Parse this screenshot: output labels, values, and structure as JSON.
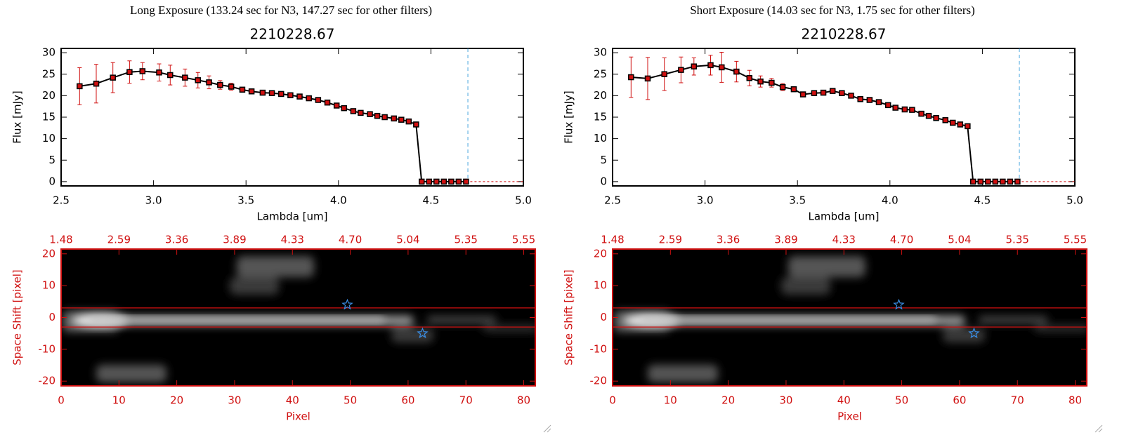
{
  "chart_data": [
    {
      "type": "line",
      "title": "Long Exposure (133.24 sec for N3, 147.27 sec for other filters)",
      "subtitle": "2210228.67",
      "x_label": "Lambda [um]",
      "y_label": "Flux [mJy]",
      "xlim": [
        2.5,
        5.0
      ],
      "ylim": [
        -1,
        31
      ],
      "xticks": [
        2.5,
        {
          "value": 3.0,
          "label": "3.0"
        },
        3.5,
        {
          "value": 4.0,
          "label": "4.0"
        },
        4.5,
        {
          "value": 5.0,
          "label": "5.0"
        }
      ],
      "yticks": [
        0,
        5,
        10,
        15,
        20,
        25,
        30
      ],
      "vline": 4.7,
      "color": "#d01010",
      "x": [
        2.6,
        2.69,
        2.78,
        2.87,
        2.94,
        3.03,
        3.09,
        3.17,
        3.24,
        3.3,
        3.36,
        3.42,
        3.48,
        3.53,
        3.59,
        3.64,
        3.69,
        3.74,
        3.79,
        3.84,
        3.89,
        3.94,
        3.99,
        4.03,
        4.08,
        4.12,
        4.17,
        4.21,
        4.25,
        4.3,
        4.34,
        4.38,
        4.42,
        4.45,
        4.49,
        4.53,
        4.57,
        4.61,
        4.65,
        4.69
      ],
      "series": [
        {
          "values": [
            22.2,
            22.8,
            24.2,
            25.5,
            25.7,
            25.4,
            24.8,
            24.2,
            23.6,
            23.1,
            22.5,
            22.1,
            21.4,
            21.0,
            20.7,
            20.6,
            20.4,
            20.1,
            19.8,
            19.4,
            19.0,
            18.4,
            17.7,
            17.1,
            16.4,
            16.0,
            15.7,
            15.3,
            15.0,
            14.7,
            14.4,
            14.0,
            13.3,
            0,
            0,
            0,
            0,
            0,
            0,
            0
          ],
          "errors": [
            4.3,
            4.5,
            3.5,
            2.6,
            2.0,
            2.0,
            2.3,
            2.0,
            1.8,
            1.5,
            1.0,
            0.8,
            0.4,
            0.4,
            0.4,
            0.4,
            0.4,
            0.4,
            0.4,
            0.4,
            0.4,
            0.4,
            0.4,
            0.4,
            0.4,
            0.4,
            0.4,
            0.4,
            0.4,
            0.4,
            0.4,
            0.4,
            0.4,
            0,
            0,
            0,
            0,
            0,
            0,
            0
          ]
        }
      ]
    },
    {
      "type": "line",
      "title": "Short Exposure (14.03 sec for N3, 1.75 sec for other filters)",
      "subtitle": "2210228.67",
      "x_label": "Lambda [um]",
      "y_label": "Flux [mJy]",
      "xlim": [
        2.5,
        5.0
      ],
      "ylim": [
        -1,
        31
      ],
      "xticks": [
        2.5,
        {
          "value": 3.0,
          "label": "3.0"
        },
        3.5,
        {
          "value": 4.0,
          "label": "4.0"
        },
        4.5,
        {
          "value": 5.0,
          "label": "5.0"
        }
      ],
      "yticks": [
        0,
        5,
        10,
        15,
        20,
        25,
        30
      ],
      "vline": 4.7,
      "color": "#d01010",
      "x": [
        2.6,
        2.69,
        2.78,
        2.87,
        2.94,
        3.03,
        3.09,
        3.17,
        3.24,
        3.3,
        3.36,
        3.42,
        3.48,
        3.53,
        3.59,
        3.64,
        3.69,
        3.74,
        3.79,
        3.84,
        3.89,
        3.94,
        3.99,
        4.03,
        4.08,
        4.12,
        4.17,
        4.21,
        4.25,
        4.3,
        4.34,
        4.38,
        4.42,
        4.45,
        4.49,
        4.53,
        4.57,
        4.61,
        4.65,
        4.69
      ],
      "series": [
        {
          "values": [
            24.3,
            24.0,
            25.0,
            26.0,
            26.8,
            27.1,
            26.6,
            25.6,
            24.1,
            23.3,
            23.0,
            22.0,
            21.5,
            20.3,
            20.6,
            20.7,
            21.1,
            20.6,
            20.0,
            19.2,
            19.0,
            18.5,
            17.8,
            17.2,
            16.8,
            16.7,
            15.8,
            15.3,
            14.8,
            14.3,
            13.7,
            13.3,
            12.9,
            0,
            0,
            0,
            0,
            0,
            0,
            0
          ],
          "errors": [
            4.7,
            4.9,
            3.8,
            3.0,
            2.0,
            2.3,
            3.5,
            2.4,
            1.8,
            1.3,
            1.0,
            0.8,
            0.4,
            0.4,
            0.4,
            0.4,
            0.4,
            0.4,
            0.4,
            0.4,
            0.4,
            0.4,
            0.4,
            0.4,
            0.4,
            0.4,
            0.4,
            0.4,
            0.4,
            0.4,
            0.4,
            0.4,
            0.4,
            0,
            0,
            0,
            0,
            0,
            0,
            0
          ]
        }
      ]
    },
    {
      "type": "image",
      "x_label": "Pixel",
      "y_label": "Space Shift [pixel]",
      "xlim": [
        0,
        82
      ],
      "ylim": [
        -21.5,
        21.5
      ],
      "xticks": [
        0,
        10,
        20,
        30,
        40,
        50,
        60,
        70,
        80
      ],
      "yticks": [
        -20,
        -10,
        0,
        10,
        20
      ],
      "x2ticks": [
        {
          "value": 0,
          "label": "1.48"
        },
        {
          "value": 10,
          "label": "2.59"
        },
        {
          "value": 20,
          "label": "3.36"
        },
        {
          "value": 30,
          "label": "3.89"
        },
        {
          "value": 40,
          "label": "4.33"
        },
        {
          "value": 50,
          "label": "4.70"
        },
        {
          "value": 60,
          "label": "5.04"
        },
        {
          "value": 70,
          "label": "5.35"
        },
        {
          "value": 80,
          "label": "5.55"
        }
      ],
      "hlines": [
        3,
        -3
      ],
      "stars": {
        "x": [
          49.5,
          62.5
        ],
        "y": [
          4,
          -5
        ]
      },
      "color": "#d01010"
    },
    {
      "type": "image",
      "x_label": "Pixel",
      "y_label": "Space Shift [pixel]",
      "xlim": [
        0,
        82
      ],
      "ylim": [
        -21.5,
        21.5
      ],
      "xticks": [
        0,
        10,
        20,
        30,
        40,
        50,
        60,
        70,
        80
      ],
      "yticks": [
        -20,
        -10,
        0,
        10,
        20
      ],
      "x2ticks": [
        {
          "value": 0,
          "label": "1.48"
        },
        {
          "value": 10,
          "label": "2.59"
        },
        {
          "value": 20,
          "label": "3.36"
        },
        {
          "value": 30,
          "label": "3.89"
        },
        {
          "value": 40,
          "label": "4.33"
        },
        {
          "value": 50,
          "label": "4.70"
        },
        {
          "value": 60,
          "label": "5.04"
        },
        {
          "value": 70,
          "label": "5.35"
        },
        {
          "value": 80,
          "label": "5.55"
        }
      ],
      "hlines": [
        3,
        -3
      ],
      "stars": {
        "x": [
          49.5,
          62.5
        ],
        "y": [
          4,
          -5
        ]
      },
      "color": "#d01010"
    }
  ]
}
